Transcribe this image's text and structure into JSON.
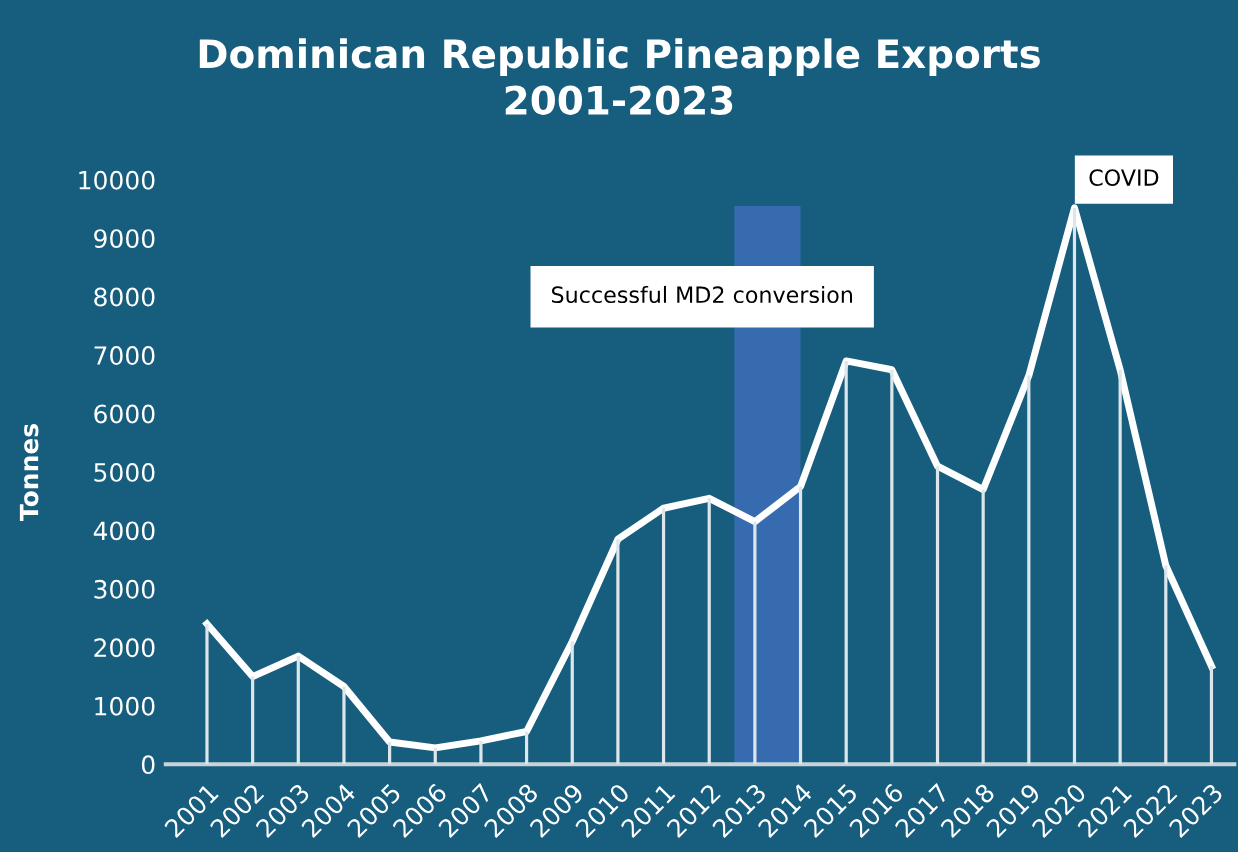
{
  "chart_data": {
    "type": "line",
    "title": "Dominican Republic Pineapple Exports\n2001-2023",
    "ylabel": "Tonnes",
    "x": [
      2001,
      2002,
      2003,
      2004,
      2005,
      2006,
      2007,
      2008,
      2009,
      2010,
      2011,
      2012,
      2013,
      2014,
      2015,
      2016,
      2017,
      2018,
      2019,
      2020,
      2021,
      2022,
      2023
    ],
    "series": [
      {
        "color": "#ffffff",
        "values": [
          2400,
          1500,
          1850,
          1330,
          380,
          280,
          400,
          560,
          2100,
          3850,
          4380,
          4550,
          4150,
          4750,
          6900,
          6750,
          5100,
          4700,
          6650,
          9520,
          6750,
          3400,
          1680
        ]
      },
      {
        "type": "bar",
        "color": "#dde6eb",
        "values": [
          2400,
          1500,
          1850,
          1330,
          380,
          280,
          400,
          560,
          2100,
          3850,
          4380,
          4550,
          4150,
          4750,
          6900,
          6750,
          5100,
          4700,
          6650,
          9520,
          6750,
          3400,
          1680
        ]
      }
    ],
    "xlim": [
      2000.1,
      2023.5
    ],
    "xticks": [
      2001,
      2002,
      2003,
      2004,
      2005,
      2006,
      2007,
      2008,
      2009,
      2010,
      2011,
      2012,
      2013,
      2014,
      2015,
      2016,
      2017,
      2018,
      2019,
      2020,
      2021,
      2022,
      2023
    ],
    "ylim": [
      0,
      10000
    ],
    "yticks": [
      0,
      1000,
      2000,
      3000,
      4000,
      5000,
      6000,
      7000,
      8000,
      9000,
      10000
    ],
    "bands": [
      {
        "axis": "x",
        "from": 2012.55,
        "to": 2014,
        "color": "#3a6db5"
      }
    ],
    "annotations": [
      "Successful MD2 conversion",
      {
        "text": "COVID",
        "x": 2020,
        "y": 9520
      }
    ],
    "grid": false,
    "legend": false,
    "marker": "none",
    "line_style": "solid"
  }
}
